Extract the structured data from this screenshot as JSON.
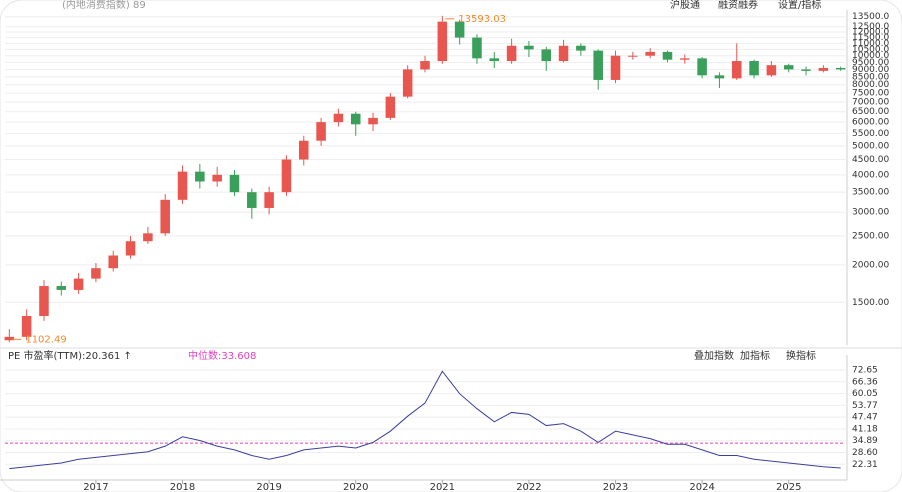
{
  "header": {
    "title": "(内地消费指数) 89",
    "buttons": [
      "沪股通",
      "融资融券",
      "设置/指标"
    ]
  },
  "chart_data": [
    {
      "type": "candlestick",
      "log_scale": true,
      "up_color": "#e8574f",
      "down_color": "#3a9f5a",
      "grid": true,
      "x": [
        2016.0,
        2016.2,
        2016.4,
        2016.6,
        2016.8,
        2017.0,
        2017.2,
        2017.4,
        2017.6,
        2017.8,
        2018.0,
        2018.2,
        2018.4,
        2018.6,
        2018.8,
        2019.0,
        2019.2,
        2019.4,
        2019.6,
        2019.8,
        2020.0,
        2020.2,
        2020.4,
        2020.6,
        2020.8,
        2021.0,
        2021.2,
        2021.4,
        2021.6,
        2021.8,
        2022.0,
        2022.2,
        2022.4,
        2022.6,
        2022.8,
        2023.0,
        2023.2,
        2023.4,
        2023.6,
        2023.8,
        2024.0,
        2024.2,
        2024.4,
        2024.6,
        2024.8,
        2025.0,
        2025.2,
        2025.4,
        2025.6
      ],
      "open": [
        1120,
        1150,
        1350,
        1700,
        1650,
        1800,
        1950,
        2150,
        2400,
        2550,
        3300,
        4100,
        3800,
        4000,
        3500,
        3100,
        3500,
        4500,
        5200,
        6000,
        6400,
        5900,
        6200,
        7300,
        9000,
        9600,
        13000,
        11500,
        9800,
        9600,
        10800,
        10500,
        9600,
        10800,
        10400,
        8300,
        10000,
        10000,
        10300,
        9700,
        9800,
        8600,
        8400,
        9600,
        8600,
        9300,
        9000,
        8900,
        9100
      ],
      "high": [
        1220,
        1420,
        1780,
        1760,
        1880,
        2030,
        2230,
        2500,
        2680,
        3450,
        4300,
        4350,
        4250,
        4150,
        3600,
        3650,
        4650,
        5400,
        6200,
        6650,
        6500,
        6450,
        7500,
        9300,
        10000,
        13593.03,
        13200,
        11800,
        10300,
        11400,
        11200,
        10700,
        11300,
        11000,
        10500,
        10400,
        10300,
        10600,
        10400,
        10100,
        9900,
        8800,
        11000,
        9700,
        9600,
        9400,
        9200,
        9300,
        9200
      ],
      "low": [
        1102.49,
        1120,
        1300,
        1580,
        1600,
        1750,
        1900,
        2100,
        2350,
        2500,
        3200,
        3600,
        3650,
        3400,
        2850,
        2950,
        3400,
        4300,
        5000,
        5800,
        5400,
        5600,
        6100,
        7200,
        8800,
        9400,
        10900,
        9400,
        9100,
        9400,
        9900,
        8900,
        9500,
        10000,
        7700,
        8100,
        9700,
        9800,
        9500,
        9400,
        8400,
        7800,
        8300,
        8400,
        8500,
        8800,
        8600,
        8800,
        8900
      ],
      "close": [
        1150,
        1350,
        1700,
        1650,
        1800,
        1950,
        2150,
        2400,
        2550,
        3300,
        4100,
        3800,
        4000,
        3500,
        3100,
        3500,
        4500,
        5200,
        6000,
        6400,
        5900,
        6200,
        7300,
        9000,
        9600,
        13000,
        11500,
        9800,
        9600,
        10800,
        10500,
        9600,
        10800,
        10400,
        8300,
        10000,
        10000,
        10300,
        9700,
        9800,
        8600,
        8400,
        9600,
        8600,
        9300,
        9000,
        8900,
        9100,
        9000
      ],
      "xlim": [
        2015.95,
        2025.65
      ],
      "ylim": [
        1080,
        14000
      ],
      "yticks": [
        {
          "value": 1500,
          "label": "1500.00"
        },
        {
          "value": 2000,
          "label": "2000.00"
        },
        {
          "value": 2500,
          "label": "2500.00"
        },
        {
          "value": 3000,
          "label": "3000.00"
        },
        {
          "value": 3500,
          "label": "3500.00"
        },
        {
          "value": 4000,
          "label": "4000.00"
        },
        {
          "value": 4500,
          "label": "4500.00"
        },
        {
          "value": 5000,
          "label": "5000.00"
        },
        {
          "value": 5500,
          "label": "5500.00"
        },
        {
          "value": 6000,
          "label": "6000.00"
        },
        {
          "value": 6500,
          "label": "6500.00"
        },
        {
          "value": 7000,
          "label": "7000.00"
        },
        {
          "value": 7500,
          "label": "7500.00"
        },
        {
          "value": 8000,
          "label": "8000.00"
        },
        {
          "value": 8500,
          "label": "8500.00"
        },
        {
          "value": 9000,
          "label": "9000.00"
        },
        {
          "value": 9500,
          "label": "9500.00"
        },
        {
          "value": 10000,
          "label": "10000.0"
        },
        {
          "value": 10500,
          "label": "10500.0"
        },
        {
          "value": 11000,
          "label": "11000.0"
        },
        {
          "value": 11500,
          "label": "11500.0"
        },
        {
          "value": 12000,
          "label": "12000.0"
        },
        {
          "value": 12500,
          "label": "12500.0"
        },
        {
          "value": 13500,
          "label": "13500.0"
        }
      ],
      "annotations": [
        {
          "text": "13593.03",
          "x": 2021.0,
          "y": 13593.03,
          "color": "#f08a30"
        },
        {
          "text": "1102.49",
          "x": 2016.0,
          "y": 1102.49,
          "color": "#f08a30"
        }
      ]
    },
    {
      "type": "line",
      "grid": true,
      "x": [
        2016.0,
        2016.2,
        2016.4,
        2016.6,
        2016.8,
        2017.0,
        2017.2,
        2017.4,
        2017.6,
        2017.8,
        2018.0,
        2018.2,
        2018.4,
        2018.6,
        2018.8,
        2019.0,
        2019.2,
        2019.4,
        2019.6,
        2019.8,
        2020.0,
        2020.2,
        2020.4,
        2020.6,
        2020.8,
        2021.0,
        2021.2,
        2021.4,
        2021.6,
        2021.8,
        2022.0,
        2022.2,
        2022.4,
        2022.6,
        2022.8,
        2023.0,
        2023.2,
        2023.4,
        2023.6,
        2023.8,
        2024.0,
        2024.2,
        2024.4,
        2024.6,
        2024.8,
        2025.0,
        2025.2,
        2025.4,
        2025.6
      ],
      "series": [
        {
          "name": "PE 市盈率(TTM):20.361 ↑",
          "color": "#3b3f9e",
          "values": [
            20,
            21,
            22,
            23,
            25,
            26,
            27,
            28,
            29,
            32,
            37,
            35,
            32,
            30,
            27,
            25,
            27,
            30,
            31,
            32,
            31,
            34,
            40,
            48,
            55,
            72,
            60,
            52,
            45,
            50,
            49,
            43,
            44,
            40,
            34,
            40,
            38,
            36,
            33,
            33,
            30,
            27,
            27,
            25,
            24,
            23,
            22,
            21,
            20.361
          ]
        }
      ],
      "reference": {
        "name": "中位数:33.608",
        "value": 33.608,
        "color": "#e040c0"
      },
      "xlim": [
        2015.95,
        2025.65
      ],
      "ylim": [
        15,
        78
      ],
      "xticks": [
        2017,
        2018,
        2019,
        2020,
        2021,
        2022,
        2023,
        2024,
        2025
      ],
      "yticks": [
        22.31,
        {
          "value": 28.6,
          "label": "28.60"
        },
        34.89,
        41.18,
        47.47,
        53.77,
        60.05,
        66.36,
        72.65
      ]
    }
  ],
  "footer": {
    "buttons": [
      "叠加指数",
      "加指标",
      "换指标"
    ]
  }
}
